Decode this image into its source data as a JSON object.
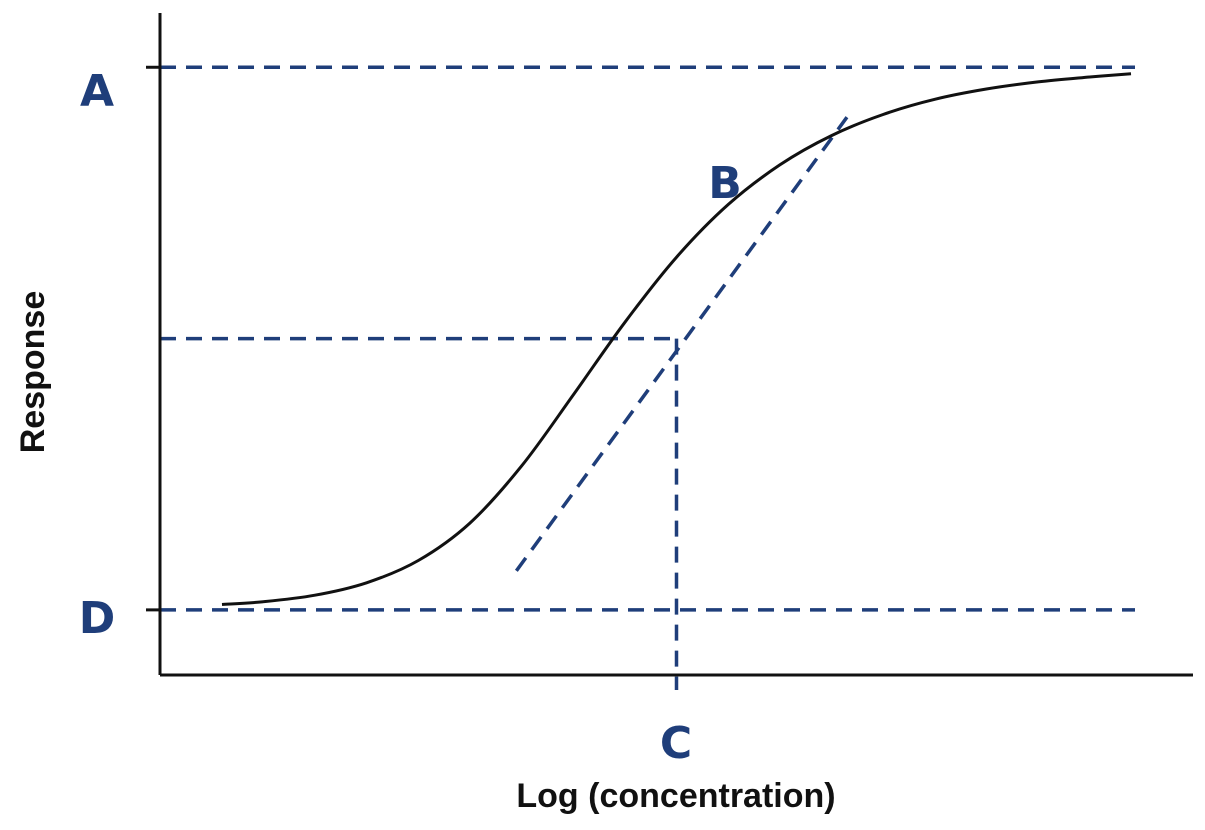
{
  "chart_data": {
    "type": "line",
    "title": "",
    "xlabel": "Log (concentration)",
    "ylabel": "Response",
    "xlim": [
      0,
      10
    ],
    "ylim": [
      -1.2,
      11
    ],
    "grid": false,
    "series": [
      {
        "x": [
          0.6,
          1.0,
          1.5,
          2.0,
          2.5,
          3.0,
          3.5,
          4.0,
          4.5,
          5.0,
          5.5,
          6.0,
          6.5,
          7.0,
          7.5,
          8.0,
          8.5,
          9.0,
          9.4
        ],
        "values": [
          0.1,
          0.15,
          0.27,
          0.5,
          0.91,
          1.6,
          2.65,
          3.96,
          5.3,
          6.5,
          7.47,
          8.2,
          8.74,
          9.13,
          9.41,
          9.6,
          9.73,
          9.82,
          9.88
        ]
      }
    ],
    "reference_lines": {
      "A": 10,
      "D": 0,
      "midpoint": 5,
      "C": 5
    },
    "tangent_line": {
      "x": [
        3.45,
        6.65
      ],
      "values": [
        0.72,
        9.08
      ]
    },
    "point_labels": {
      "A": "A",
      "B": "B",
      "C": "C",
      "D": "D"
    },
    "colors": {
      "curve": "#111111",
      "axes": "#111111",
      "dashed": "#1f3e7a",
      "labels": "#1f3e7a"
    }
  }
}
